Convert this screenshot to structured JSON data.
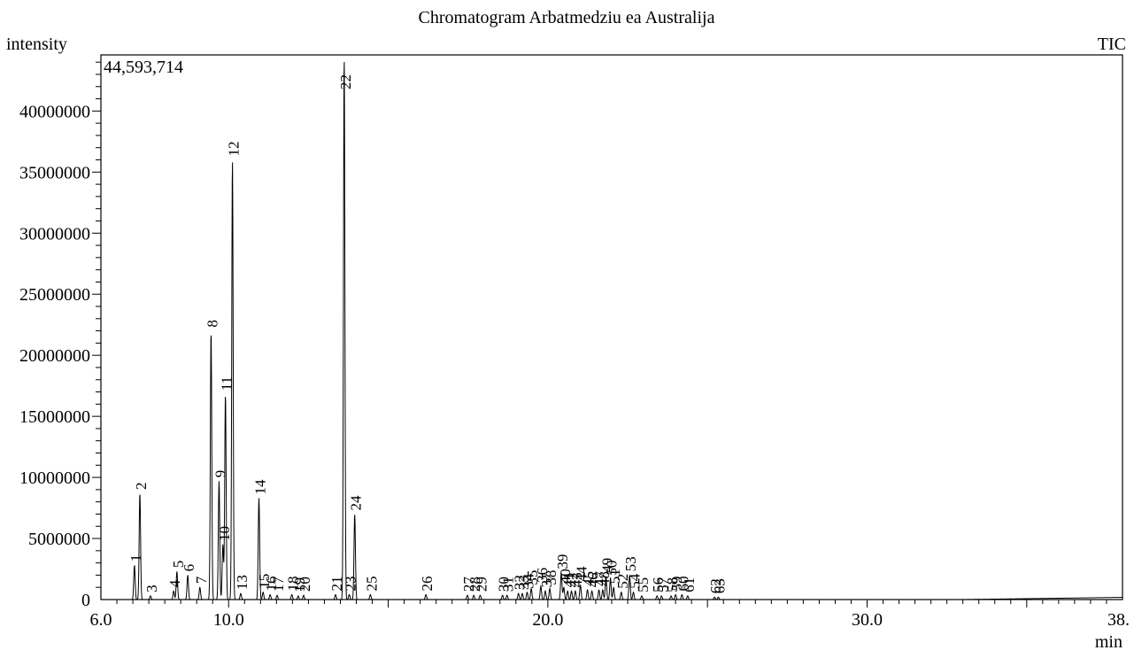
{
  "chart_data": {
    "type": "line",
    "title": "Chromatogram Arbatmedziu ea Australija",
    "ylabel": "intensity",
    "xlabel": "min",
    "trace_label": "TIC",
    "max_intensity_label": "44,593,714",
    "xlim": [
      6.0,
      38.0
    ],
    "ylim": [
      0,
      44593714
    ],
    "x_ticks": [
      6.0,
      10.0,
      20.0,
      30.0,
      38.0
    ],
    "x_tick_labels": [
      "6.0",
      "10.0",
      "20.0",
      "30.0",
      "38."
    ],
    "y_ticks": [
      0,
      5000000,
      10000000,
      15000000,
      20000000,
      25000000,
      30000000,
      35000000,
      40000000
    ],
    "y_tick_labels": [
      "0",
      "5000000",
      "10000000",
      "15000000",
      "20000000",
      "25000000",
      "30000000",
      "35000000",
      "40000000"
    ],
    "grid": false,
    "peaks": [
      {
        "label": "1",
        "x": 7.05,
        "y": 2800000
      },
      {
        "label": "2",
        "x": 7.22,
        "y": 8700000
      },
      {
        "label": "3",
        "x": 7.55,
        "y": 300000
      },
      {
        "label": "4",
        "x": 8.28,
        "y": 700000
      },
      {
        "label": "5",
        "x": 8.38,
        "y": 2300000
      },
      {
        "label": "6",
        "x": 8.72,
        "y": 2000000
      },
      {
        "label": "7",
        "x": 9.1,
        "y": 1000000
      },
      {
        "label": "8",
        "x": 9.45,
        "y": 22000000
      },
      {
        "label": "9",
        "x": 9.7,
        "y": 9700000
      },
      {
        "label": "10",
        "x": 9.82,
        "y": 4500000
      },
      {
        "label": "11",
        "x": 9.9,
        "y": 16800000
      },
      {
        "label": "12",
        "x": 10.12,
        "y": 36000000
      },
      {
        "label": "13",
        "x": 10.38,
        "y": 500000
      },
      {
        "label": "14",
        "x": 10.95,
        "y": 8300000
      },
      {
        "label": "15",
        "x": 11.08,
        "y": 600000
      },
      {
        "label": "16",
        "x": 11.3,
        "y": 400000
      },
      {
        "label": "17",
        "x": 11.52,
        "y": 350000
      },
      {
        "label": "18",
        "x": 11.98,
        "y": 400000
      },
      {
        "label": "19",
        "x": 12.18,
        "y": 300000
      },
      {
        "label": "20",
        "x": 12.35,
        "y": 350000
      },
      {
        "label": "21",
        "x": 13.35,
        "y": 400000
      },
      {
        "label": "22",
        "x": 13.62,
        "y": 44593714
      },
      {
        "label": "23",
        "x": 13.78,
        "y": 400000
      },
      {
        "label": "24",
        "x": 13.95,
        "y": 7000000
      },
      {
        "label": "25",
        "x": 14.44,
        "y": 400000
      },
      {
        "label": "26",
        "x": 16.18,
        "y": 400000
      },
      {
        "label": "27",
        "x": 17.48,
        "y": 350000
      },
      {
        "label": "28",
        "x": 17.68,
        "y": 350000
      },
      {
        "label": "29",
        "x": 17.88,
        "y": 350000
      },
      {
        "label": "30",
        "x": 18.58,
        "y": 350000
      },
      {
        "label": "31",
        "x": 18.72,
        "y": 350000
      },
      {
        "label": "32",
        "x": 19.08,
        "y": 500000
      },
      {
        "label": "33",
        "x": 19.2,
        "y": 500000
      },
      {
        "label": "34",
        "x": 19.35,
        "y": 600000
      },
      {
        "label": "35",
        "x": 19.48,
        "y": 900000
      },
      {
        "label": "36",
        "x": 19.78,
        "y": 1100000
      },
      {
        "label": "37",
        "x": 19.92,
        "y": 700000
      },
      {
        "label": "38",
        "x": 20.06,
        "y": 900000
      },
      {
        "label": "39",
        "x": 20.42,
        "y": 2200000
      },
      {
        "label": "40",
        "x": 20.5,
        "y": 1000000
      },
      {
        "label": "41",
        "x": 20.62,
        "y": 700000
      },
      {
        "label": "42",
        "x": 20.74,
        "y": 700000
      },
      {
        "label": "43",
        "x": 20.86,
        "y": 700000
      },
      {
        "label": "44",
        "x": 21.02,
        "y": 1200000
      },
      {
        "label": "45",
        "x": 21.24,
        "y": 800000
      },
      {
        "label": "46",
        "x": 21.38,
        "y": 700000
      },
      {
        "label": "47",
        "x": 21.6,
        "y": 800000
      },
      {
        "label": "48",
        "x": 21.72,
        "y": 800000
      },
      {
        "label": "49",
        "x": 21.82,
        "y": 1900000
      },
      {
        "label": "50",
        "x": 21.96,
        "y": 1700000
      },
      {
        "label": "51",
        "x": 22.06,
        "y": 1000000
      },
      {
        "label": "52",
        "x": 22.3,
        "y": 600000
      },
      {
        "label": "53",
        "x": 22.56,
        "y": 2000000
      },
      {
        "label": "54",
        "x": 22.68,
        "y": 600000
      },
      {
        "label": "55",
        "x": 22.94,
        "y": 300000
      },
      {
        "label": "56",
        "x": 23.42,
        "y": 300000
      },
      {
        "label": "57",
        "x": 23.56,
        "y": 300000
      },
      {
        "label": "58",
        "x": 23.86,
        "y": 300000
      },
      {
        "label": "59",
        "x": 24.0,
        "y": 400000
      },
      {
        "label": "60",
        "x": 24.2,
        "y": 400000
      },
      {
        "label": "61",
        "x": 24.38,
        "y": 300000
      },
      {
        "label": "62",
        "x": 25.22,
        "y": 200000
      },
      {
        "label": "63",
        "x": 25.34,
        "y": 200000
      }
    ]
  }
}
